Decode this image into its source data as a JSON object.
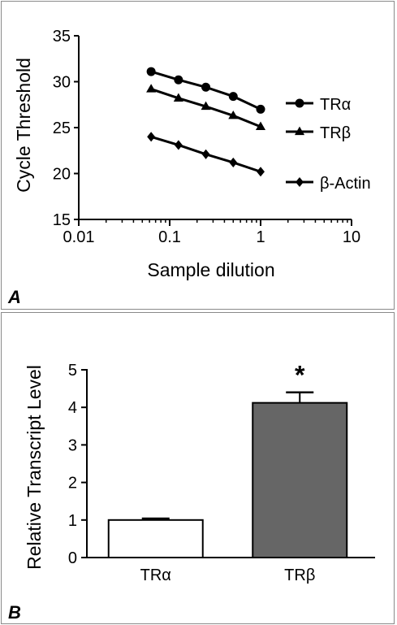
{
  "panel_a": {
    "letter": "A",
    "chart_data": {
      "type": "line",
      "x_scale": "log",
      "xlabel": "Sample dilution",
      "ylabel": "Cycle Threshold",
      "xlim": [
        0.01,
        10
      ],
      "ylim": [
        15,
        35
      ],
      "x_ticks": [
        "0.01",
        "0.1",
        "1",
        "10"
      ],
      "y_ticks": [
        "15",
        "20",
        "25",
        "30",
        "35"
      ],
      "legend_position": "right",
      "series": [
        {
          "name": "TRα",
          "marker": "circle",
          "x": [
            0.0625,
            0.125,
            0.25,
            0.5,
            1
          ],
          "y": [
            31.1,
            30.2,
            29.4,
            28.4,
            27.0
          ]
        },
        {
          "name": "TRβ",
          "marker": "triangle",
          "x": [
            0.0625,
            0.125,
            0.25,
            0.5,
            1
          ],
          "y": [
            29.2,
            28.2,
            27.3,
            26.3,
            25.1
          ]
        },
        {
          "name": "β-Actin",
          "marker": "diamond",
          "x": [
            0.0625,
            0.125,
            0.25,
            0.5,
            1
          ],
          "y": [
            24.0,
            23.1,
            22.1,
            21.2,
            20.2
          ]
        }
      ]
    }
  },
  "panel_b": {
    "letter": "B",
    "chart_data": {
      "type": "bar",
      "ylabel": "Relative Transcript Level",
      "ylim": [
        0,
        5
      ],
      "y_ticks": [
        "0",
        "1",
        "2",
        "3",
        "4",
        "5"
      ],
      "categories": [
        "TRα",
        "TRβ"
      ],
      "values": [
        1.0,
        4.12
      ],
      "errors": [
        0.04,
        0.28
      ],
      "bar_colors": [
        "#ffffff",
        "#666666"
      ],
      "annotations": [
        {
          "category": "TRβ",
          "text": "*"
        }
      ]
    }
  }
}
